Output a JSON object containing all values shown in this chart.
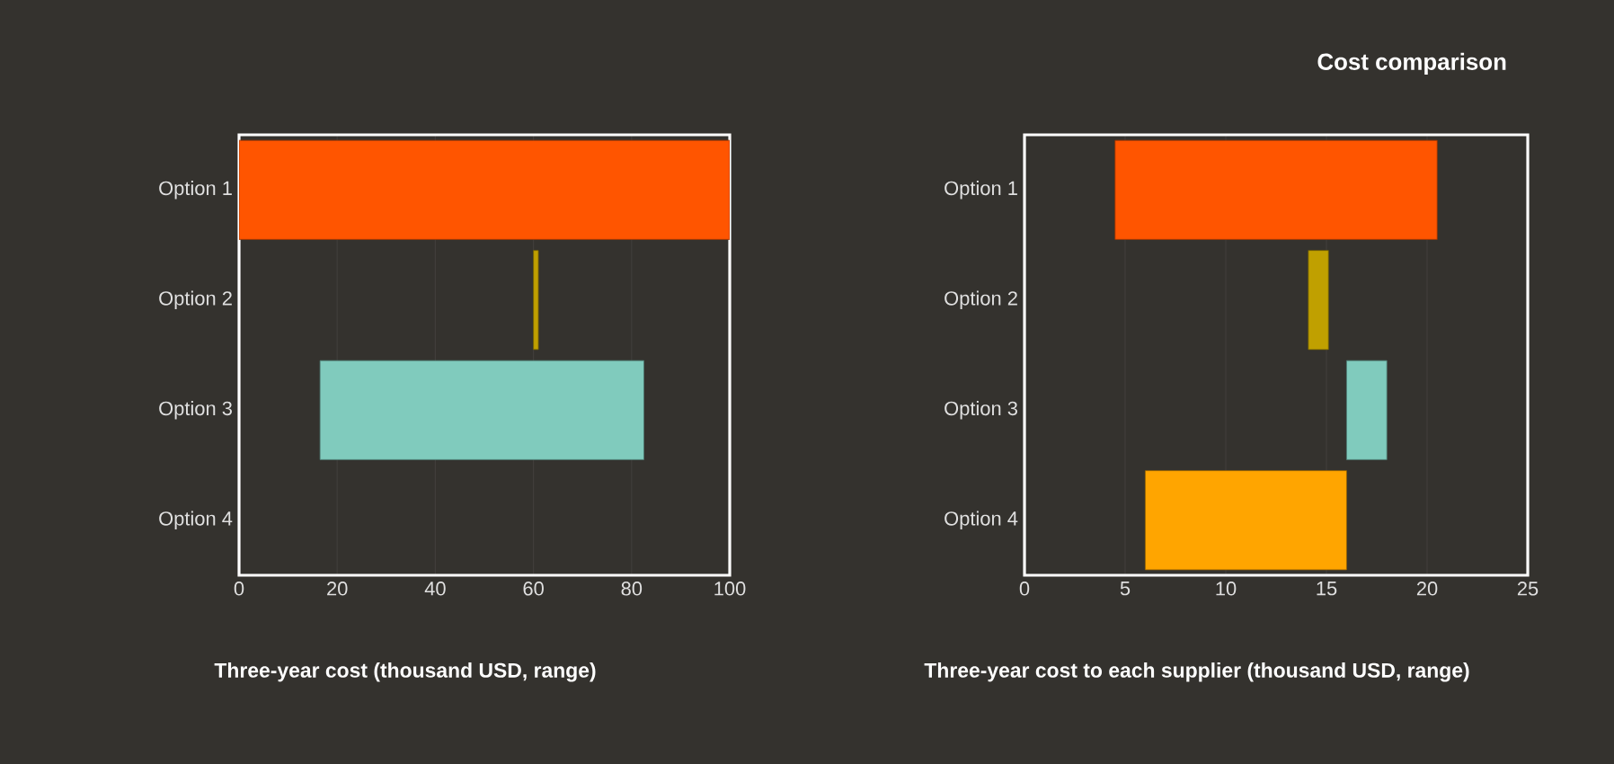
{
  "chart_data": [
    {
      "type": "bar",
      "orientation": "horizontal",
      "categories": [
        "Option 1",
        "Option 2",
        "Option 3",
        "Option 4"
      ],
      "base": [
        0,
        60,
        16.5,
        null
      ],
      "values": [
        100,
        1,
        66,
        null
      ],
      "colors": [
        "#ff5500",
        "#c0a000",
        "#80cbbd",
        "#ffa500"
      ],
      "xlim": [
        0,
        100
      ],
      "xticks": [
        0,
        20,
        40,
        60,
        80,
        100
      ],
      "grid": "x",
      "xlabel": "Three-year cost (thousand USD, range)"
    },
    {
      "type": "bar",
      "orientation": "horizontal",
      "title": "Cost comparison",
      "categories": [
        "Option 1",
        "Option 2",
        "Option 3",
        "Option 4"
      ],
      "base": [
        4.5,
        14.1,
        16,
        6
      ],
      "values": [
        16,
        1,
        2,
        10
      ],
      "colors": [
        "#ff5500",
        "#c0a000",
        "#80cbbd",
        "#ffa500"
      ],
      "xlim": [
        0,
        25
      ],
      "xticks": [
        0,
        5,
        10,
        15,
        20,
        25
      ],
      "grid": "x",
      "xlabel": "Three-year cost to each supplier (thousand USD, range)"
    }
  ]
}
